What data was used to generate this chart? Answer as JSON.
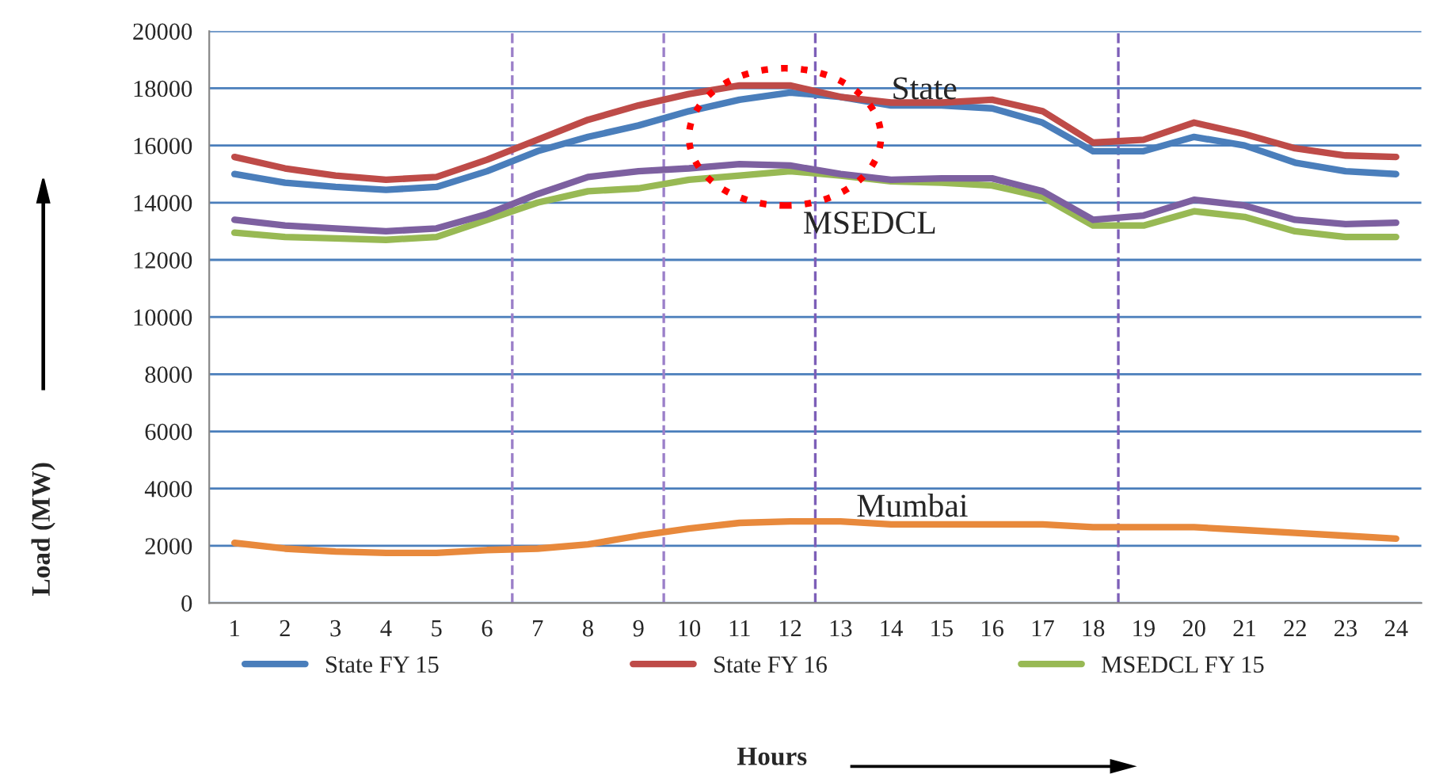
{
  "chart_data": {
    "type": "line",
    "xlabel": "Hours",
    "ylabel": "Load (MW)",
    "x": [
      1,
      2,
      3,
      4,
      5,
      6,
      7,
      8,
      9,
      10,
      11,
      12,
      13,
      14,
      15,
      16,
      17,
      18,
      19,
      20,
      21,
      22,
      23,
      24
    ],
    "xlim": [
      0.5,
      24.5
    ],
    "xticks": [
      1,
      2,
      3,
      4,
      5,
      6,
      7,
      8,
      9,
      10,
      11,
      12,
      13,
      14,
      15,
      16,
      17,
      18,
      19,
      20,
      21,
      22,
      23,
      24
    ],
    "ylim": [
      0,
      20000
    ],
    "yticks": [
      0,
      2000,
      4000,
      6000,
      8000,
      10000,
      12000,
      14000,
      16000,
      18000,
      20000
    ],
    "grid": "y",
    "legend": "bottom",
    "marker": "none",
    "line_style": "solid",
    "series": [
      {
        "name": "State FY 15",
        "color": "#4a7ebb",
        "values": [
          15000,
          14700,
          14550,
          14450,
          14550,
          15100,
          15800,
          16300,
          16700,
          17200,
          17600,
          17850,
          17700,
          17400,
          17400,
          17300,
          16800,
          15800,
          15800,
          16300,
          16000,
          15400,
          15100,
          15000
        ]
      },
      {
        "name": "State FY 16",
        "color": "#be4b48",
        "values": [
          15600,
          15200,
          14950,
          14800,
          14900,
          15500,
          16200,
          16900,
          17400,
          17800,
          18100,
          18100,
          17700,
          17500,
          17500,
          17600,
          17200,
          16100,
          16200,
          16800,
          16400,
          15900,
          15650,
          15600
        ]
      },
      {
        "name": "MSEDCL FY 15",
        "color": "#98b954",
        "values": [
          12950,
          12800,
          12750,
          12700,
          12800,
          13400,
          14000,
          14400,
          14500,
          14800,
          14950,
          15100,
          14950,
          14750,
          14700,
          14600,
          14200,
          13200,
          13200,
          13700,
          13500,
          13000,
          12800,
          12800
        ]
      },
      {
        "color": "#7d60a0",
        "values": [
          13400,
          13200,
          13100,
          13000,
          13100,
          13600,
          14300,
          14900,
          15100,
          15200,
          15350,
          15300,
          15000,
          14800,
          14850,
          14850,
          14400,
          13400,
          13550,
          14100,
          13900,
          13400,
          13250,
          13300
        ]
      },
      {
        "color": "#e8893c",
        "values": [
          2100,
          1900,
          1800,
          1750,
          1750,
          1850,
          1900,
          2050,
          2350,
          2600,
          2800,
          2850,
          2850,
          2750,
          2750,
          2750,
          2750,
          2650,
          2650,
          2650,
          2550,
          2450,
          2350,
          2250
        ]
      }
    ],
    "ref_lines": [
      {
        "axis": "x",
        "value": 6.5,
        "color": "#9b7fc9",
        "line_style": "dashed"
      },
      {
        "axis": "x",
        "value": 9.5,
        "color": "#9b7fc9",
        "line_style": "dashed"
      },
      {
        "axis": "x",
        "value": 12.5,
        "color": "#7d5fb8",
        "line_style": "dashed"
      },
      {
        "axis": "x",
        "value": 18.5,
        "color": "#7d5fb8",
        "line_style": "dashed"
      }
    ],
    "annotations": [
      "State",
      "MSEDCL",
      "Mumbai"
    ]
  }
}
